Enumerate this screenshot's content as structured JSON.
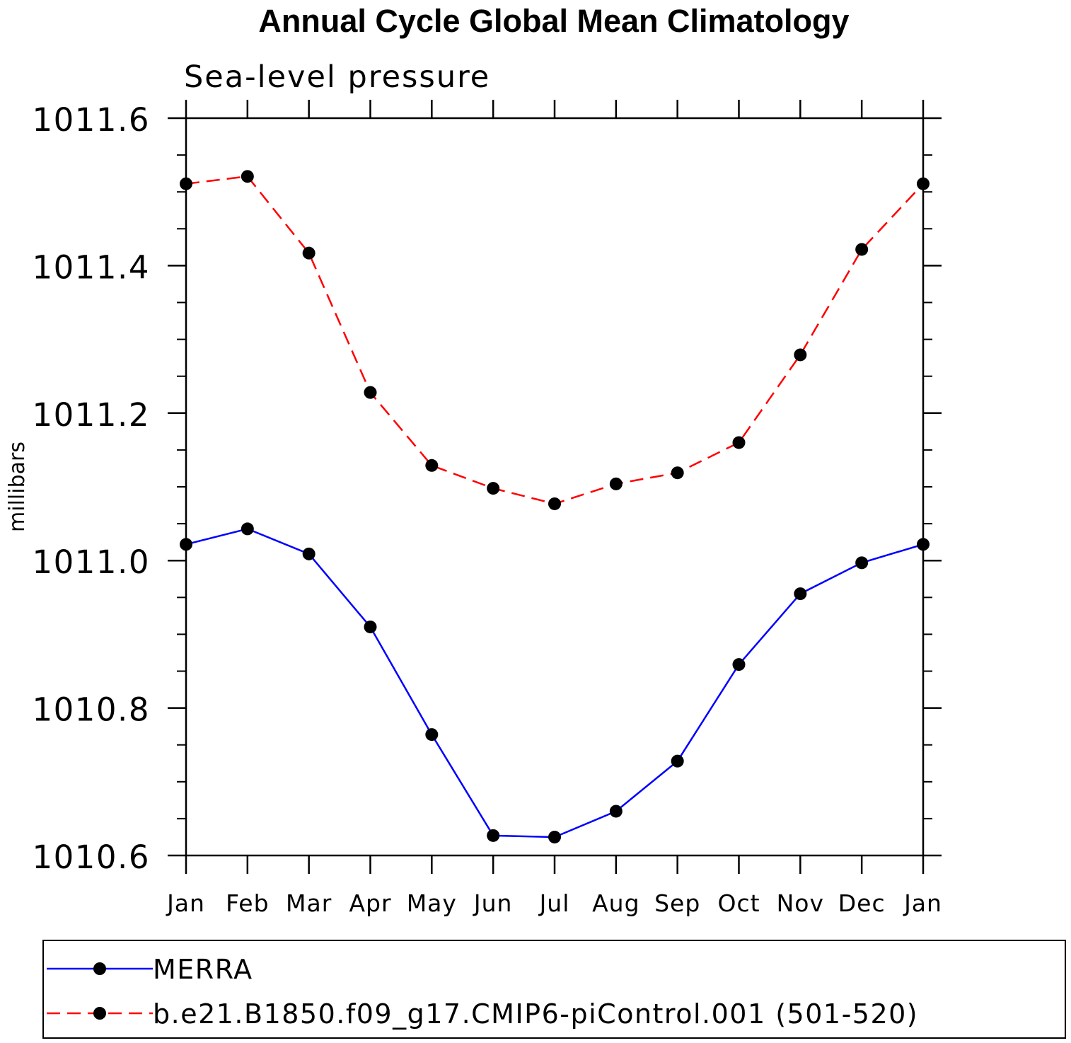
{
  "chart_data": {
    "type": "line",
    "title": "Annual Cycle Global Mean Climatology",
    "subtitle": "Sea-level pressure",
    "xlabel": "",
    "ylabel": "millibars",
    "categories": [
      "Jan",
      "Feb",
      "Mar",
      "Apr",
      "May",
      "Jun",
      "Jul",
      "Aug",
      "Sep",
      "Oct",
      "Nov",
      "Dec",
      "Jan"
    ],
    "ylim": [
      1010.6,
      1011.6
    ],
    "yticks": [
      "1010.6",
      "1010.8",
      "1011.0",
      "1011.2",
      "1011.4",
      "1011.6"
    ],
    "grid": false,
    "legend_position": "bottom",
    "series": [
      {
        "name": "MERRA",
        "color": "#0000ff",
        "dashed": false,
        "values": [
          1011.022,
          1011.043,
          1011.009,
          1010.91,
          1010.764,
          1010.627,
          1010.625,
          1010.66,
          1010.728,
          1010.859,
          1010.955,
          1010.997,
          1011.022
        ]
      },
      {
        "name": "b.e21.B1850.f09_g17.CMIP6-piControl.001 (501-520)",
        "color": "#ff0000",
        "dashed": true,
        "values": [
          1011.511,
          1011.521,
          1011.417,
          1011.228,
          1011.129,
          1011.098,
          1011.077,
          1011.104,
          1011.119,
          1011.16,
          1011.279,
          1011.422,
          1011.511
        ]
      }
    ]
  }
}
